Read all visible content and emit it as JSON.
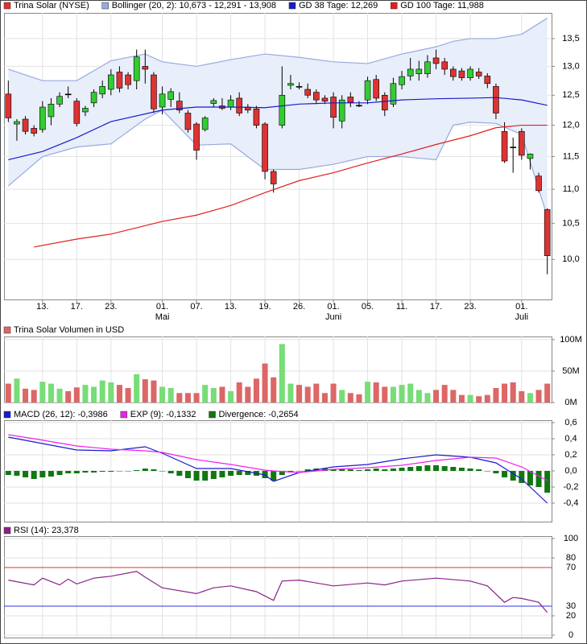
{
  "chart_data": [
    {
      "type": "candlestick",
      "title": "Trina Solar (NYSE)",
      "color_up": "#33cc33",
      "color_down": "#dd3333",
      "color_flat": "#000000",
      "log_scale": true,
      "grid": true,
      "xlim": [
        -0.5,
        63.5
      ],
      "xticks": [
        {
          "value": 4,
          "label": "13."
        },
        {
          "value": 8,
          "label": "17."
        },
        {
          "value": 12,
          "label": "23."
        },
        {
          "value": 18,
          "label": "01."
        },
        {
          "value": 22,
          "label": "07."
        },
        {
          "value": 26,
          "label": "13."
        },
        {
          "value": 30,
          "label": "19."
        },
        {
          "value": 34,
          "label": "26."
        },
        {
          "value": 38,
          "label": "01."
        },
        {
          "value": 42,
          "label": "05."
        },
        {
          "value": 46,
          "label": "11."
        },
        {
          "value": 50,
          "label": "17."
        },
        {
          "value": 54,
          "label": "23."
        },
        {
          "value": 60,
          "label": "01."
        }
      ],
      "month_labels": [
        {
          "value": 18,
          "label": "Mai"
        },
        {
          "value": 38,
          "label": "Juni"
        },
        {
          "value": 60,
          "label": "Juli"
        }
      ],
      "ylim": [
        9.47,
        13.98
      ],
      "yticks": [
        {
          "value": 10,
          "label": "10,0"
        },
        {
          "value": 10.5,
          "label": "10,5"
        },
        {
          "value": 11,
          "label": "11,0"
        },
        {
          "value": 11.5,
          "label": "11,5"
        },
        {
          "value": 12,
          "label": "12,0"
        },
        {
          "value": 12.5,
          "label": "12,5"
        },
        {
          "value": 13,
          "label": "13,0"
        },
        {
          "value": 13.5,
          "label": "13,5"
        }
      ],
      "open": [
        12.52,
        12.02,
        12.1,
        11.95,
        11.93,
        12.14,
        12.35,
        12.52,
        12.4,
        12.22,
        12.37,
        12.52,
        12.6,
        12.9,
        12.85,
        12.75,
        13.0,
        12.85,
        12.3,
        12.43,
        12.4,
        12.2,
        12.02,
        11.93,
        12.36,
        12.32,
        12.3,
        12.45,
        12.3,
        12.27,
        12.02,
        11.27,
        12.0,
        12.67,
        12.65,
        12.6,
        12.55,
        12.45,
        12.47,
        12.07,
        12.47,
        12.33,
        12.42,
        12.77,
        12.5,
        12.35,
        12.68,
        12.83,
        12.87,
        12.87,
        13.15,
        13.08,
        12.95,
        12.92,
        12.8,
        12.9,
        12.83,
        12.65,
        11.9,
        11.65,
        11.9,
        11.47,
        11.2,
        10.7
      ],
      "high": [
        12.75,
        12.1,
        12.15,
        12.0,
        12.4,
        12.45,
        12.55,
        12.65,
        12.45,
        12.32,
        12.6,
        12.75,
        12.95,
        13.0,
        12.9,
        13.3,
        13.3,
        12.9,
        12.65,
        12.62,
        12.55,
        12.25,
        12.05,
        12.15,
        12.45,
        12.45,
        12.5,
        12.55,
        12.35,
        12.32,
        12.05,
        11.3,
        13.0,
        12.85,
        12.72,
        12.7,
        12.6,
        12.5,
        12.55,
        12.5,
        12.55,
        12.4,
        12.82,
        12.85,
        12.55,
        12.8,
        12.92,
        13.15,
        13.1,
        13.2,
        13.3,
        13.15,
        13.0,
        12.97,
        13.0,
        12.97,
        12.88,
        12.7,
        12.05,
        11.8,
        11.95,
        11.55,
        11.25,
        10.72
      ],
      "low": [
        12.05,
        11.75,
        11.85,
        11.82,
        11.88,
        12.0,
        12.3,
        12.45,
        11.98,
        12.15,
        12.3,
        12.45,
        12.5,
        12.55,
        12.6,
        12.6,
        12.7,
        12.2,
        12.18,
        12.3,
        12.2,
        11.88,
        11.45,
        11.9,
        12.3,
        12.25,
        12.25,
        12.15,
        12.2,
        11.95,
        11.15,
        10.95,
        11.95,
        12.6,
        12.6,
        12.45,
        12.35,
        12.35,
        11.95,
        11.95,
        12.3,
        12.3,
        12.35,
        12.4,
        12.15,
        12.3,
        12.6,
        12.75,
        12.75,
        12.8,
        12.95,
        12.85,
        12.75,
        12.75,
        12.75,
        12.78,
        12.62,
        12.1,
        11.4,
        11.25,
        11.45,
        11.3,
        10.95,
        9.8
      ],
      "close": [
        12.12,
        12.06,
        11.9,
        11.87,
        12.3,
        12.35,
        12.48,
        12.52,
        12.03,
        12.28,
        12.55,
        12.65,
        12.85,
        12.62,
        12.68,
        13.17,
        12.95,
        12.27,
        12.52,
        12.56,
        12.25,
        11.93,
        11.6,
        12.12,
        12.41,
        12.28,
        12.42,
        12.2,
        12.25,
        12.0,
        11.27,
        11.08,
        12.5,
        12.7,
        12.65,
        12.5,
        12.42,
        12.4,
        12.13,
        12.42,
        12.38,
        12.33,
        12.75,
        12.45,
        12.25,
        12.7,
        12.82,
        12.95,
        12.95,
        13.08,
        13.05,
        12.95,
        12.82,
        12.8,
        12.95,
        12.83,
        12.7,
        12.2,
        11.43,
        11.65,
        11.52,
        11.54,
        10.98,
        10.05
      ],
      "series": [
        {
          "type": "band",
          "name": "Bollinger (20, 2): 10,673 - 12,291 - 13,908",
          "color": "#99aadd",
          "fill": "#e8eefa",
          "x": [
            0,
            4,
            8,
            12,
            16,
            18,
            22,
            26,
            30,
            34,
            38,
            42,
            46,
            50,
            52,
            54,
            57,
            60,
            63
          ],
          "upper": [
            12.95,
            12.75,
            12.75,
            13.1,
            13.22,
            13.08,
            13.0,
            13.12,
            13.22,
            13.16,
            13.08,
            13.05,
            13.22,
            13.35,
            13.45,
            13.5,
            13.5,
            13.58,
            13.88
          ],
          "lower": [
            11.05,
            11.5,
            11.65,
            11.7,
            12.1,
            12.25,
            11.68,
            11.7,
            11.3,
            11.3,
            11.38,
            11.5,
            11.5,
            11.45,
            12.0,
            12.05,
            12.03,
            11.85,
            10.6
          ]
        },
        {
          "type": "line",
          "name": "GD 38 Tage: 12,269",
          "color": "#1a1acc",
          "x": [
            0,
            4,
            8,
            12,
            18,
            22,
            26,
            30,
            34,
            38,
            42,
            46,
            50,
            54,
            57,
            60,
            63
          ],
          "values": [
            11.45,
            11.58,
            11.8,
            12.06,
            12.25,
            12.3,
            12.3,
            12.29,
            12.35,
            12.37,
            12.37,
            12.42,
            12.44,
            12.45,
            12.46,
            12.42,
            12.33
          ]
        },
        {
          "type": "line",
          "name": "GD 100 Tage: 11,988",
          "color": "#e02020",
          "x": [
            3,
            8,
            12,
            18,
            22,
            26,
            30,
            34,
            38,
            42,
            46,
            50,
            54,
            57,
            60,
            63
          ],
          "values": [
            10.17,
            10.28,
            10.35,
            10.53,
            10.62,
            10.76,
            10.95,
            11.13,
            11.25,
            11.4,
            11.54,
            11.69,
            11.83,
            11.96,
            12.0,
            12.0
          ]
        }
      ]
    },
    {
      "type": "bar",
      "title": "Trina Solar Volumen in USD",
      "color_up": "#77dd77",
      "color_down": "#dd6666",
      "grid": true,
      "ylim": [
        0,
        105000000
      ],
      "yticks": [
        {
          "value": 0,
          "label": "0M"
        },
        {
          "value": 50000000,
          "label": "50M"
        },
        {
          "value": 100000000,
          "label": "100M"
        }
      ],
      "values": [
        30000000,
        38000000,
        22000000,
        20000000,
        33000000,
        30000000,
        22000000,
        18000000,
        24000000,
        28000000,
        25000000,
        35000000,
        32000000,
        28000000,
        23000000,
        45000000,
        37000000,
        35000000,
        25000000,
        23000000,
        15000000,
        15000000,
        15000000,
        28000000,
        23000000,
        25000000,
        18000000,
        32000000,
        25000000,
        38000000,
        62000000,
        40000000,
        93000000,
        30000000,
        28000000,
        25000000,
        30000000,
        15000000,
        30000000,
        20000000,
        15000000,
        13000000,
        33000000,
        32000000,
        25000000,
        25000000,
        28000000,
        30000000,
        20000000,
        15000000,
        20000000,
        28000000,
        20000000,
        12000000,
        12000000,
        10000000,
        12000000,
        23000000,
        30000000,
        32000000,
        18000000,
        15000000,
        20000000,
        30000000
      ]
    },
    {
      "type": "line",
      "grid": true,
      "ylim": [
        -0.63,
        0.63
      ],
      "yticks": [
        {
          "value": -0.4,
          "label": "-0,4"
        },
        {
          "value": -0.2,
          "label": "-0,2"
        },
        {
          "value": 0,
          "label": "0,0"
        },
        {
          "value": 0.2,
          "label": "0,2"
        },
        {
          "value": 0.4,
          "label": "0,4"
        },
        {
          "value": 0.6,
          "label": "0,6"
        }
      ],
      "series": [
        {
          "type": "line",
          "name": "MACD (26, 12): -0,3986",
          "color": "#1a1acc",
          "x": [
            0,
            3,
            8,
            12,
            16,
            18,
            22,
            26,
            30,
            31,
            34,
            38,
            42,
            46,
            50,
            54,
            57,
            60,
            63
          ],
          "values": [
            0.42,
            0.36,
            0.26,
            0.25,
            0.3,
            0.22,
            0.03,
            0.03,
            -0.05,
            -0.13,
            -0.02,
            0.05,
            0.08,
            0.15,
            0.2,
            0.17,
            0.1,
            -0.1,
            -0.4
          ]
        },
        {
          "type": "line",
          "name": "EXP (9): -0,1332",
          "color": "#ee22ee",
          "x": [
            0,
            3,
            8,
            12,
            16,
            18,
            22,
            26,
            30,
            31,
            34,
            38,
            42,
            46,
            50,
            54,
            57,
            60,
            63
          ],
          "values": [
            0.45,
            0.4,
            0.31,
            0.27,
            0.25,
            0.23,
            0.14,
            0.08,
            0.01,
            0,
            -0.02,
            0.02,
            0.04,
            0.07,
            0.13,
            0.17,
            0.16,
            0.05,
            -0.12
          ]
        },
        {
          "type": "bar",
          "name": "Divergence: -0,2654",
          "color": "#117711",
          "values": [
            -0.05,
            -0.06,
            -0.08,
            -0.1,
            -0.08,
            -0.07,
            -0.05,
            -0.03,
            -0.03,
            -0.02,
            -0.02,
            -0.01,
            -0.01,
            0,
            0,
            0.01,
            0.03,
            0.02,
            0,
            -0.03,
            -0.06,
            -0.09,
            -0.12,
            -0.12,
            -0.1,
            -0.08,
            -0.06,
            -0.05,
            -0.05,
            -0.06,
            -0.09,
            -0.12,
            -0.05,
            -0.02,
            0,
            0.02,
            0.03,
            0.03,
            0.02,
            0.03,
            0.02,
            0.01,
            0.02,
            0.03,
            0.02,
            0.03,
            0.04,
            0.05,
            0.06,
            0.07,
            0.07,
            0.06,
            0.05,
            0.04,
            0.03,
            0.02,
            0,
            -0.03,
            -0.08,
            -0.12,
            -0.15,
            -0.18,
            -0.2,
            -0.27
          ]
        }
      ]
    },
    {
      "type": "line",
      "grid": true,
      "ylim": [
        -2.5,
        102.5
      ],
      "yticks": [
        0,
        20,
        80,
        100
      ],
      "levels": [
        {
          "value": 70,
          "color": "#e03030"
        },
        {
          "value": 30,
          "color": "#3030e0"
        }
      ],
      "series": [
        {
          "type": "line",
          "name": "RSI (14): 23,378",
          "color": "#882288",
          "x": [
            0,
            3,
            4,
            6,
            7,
            8,
            10,
            12,
            15,
            16,
            18,
            22,
            24,
            26,
            29,
            31,
            32,
            34,
            38,
            42,
            44,
            46,
            50,
            54,
            56,
            58,
            59,
            60,
            62,
            63
          ],
          "values": [
            57,
            52,
            59,
            52,
            58,
            53,
            59,
            61,
            66,
            60,
            49,
            43,
            49,
            51,
            45,
            36,
            56,
            57,
            51,
            54,
            52,
            56,
            59,
            56,
            51,
            34,
            39,
            38,
            34,
            23.4
          ]
        }
      ]
    }
  ]
}
